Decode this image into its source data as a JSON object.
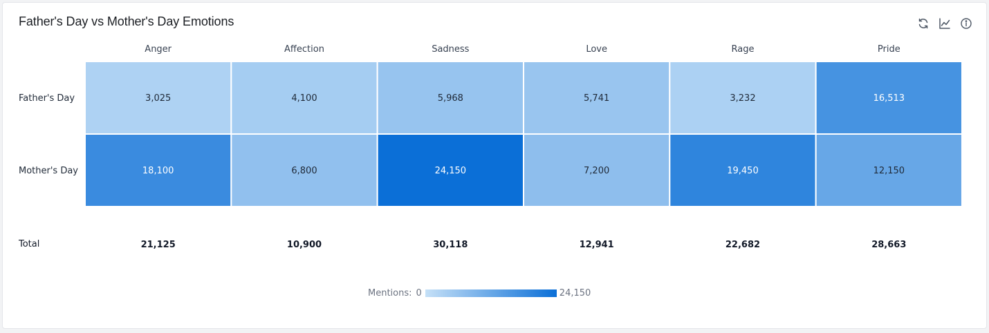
{
  "title": "Father's Day vs Mother's Day Emotions",
  "toolbar": {
    "icons": [
      "refresh-icon",
      "line-chart-icon",
      "info-icon"
    ]
  },
  "chart_data": {
    "type": "heatmap",
    "title": "Father's Day vs Mother's Day Emotions",
    "columns": [
      "Anger",
      "Affection",
      "Sadness",
      "Love",
      "Rage",
      "Pride"
    ],
    "rows": [
      "Father's Day",
      "Mother's Day"
    ],
    "values": [
      [
        3025,
        4100,
        5968,
        5741,
        3232,
        16513
      ],
      [
        18100,
        6800,
        24150,
        7200,
        19450,
        12150
      ]
    ],
    "value_labels": [
      [
        "3,025",
        "4,100",
        "5,968",
        "5,741",
        "3,232",
        "16,513"
      ],
      [
        "18,100",
        "6,800",
        "24,150",
        "7,200",
        "19,450",
        "12,150"
      ]
    ],
    "total_label": "Total",
    "totals": [
      "21,125",
      "10,900",
      "30,118",
      "12,941",
      "22,682",
      "28,663"
    ],
    "color_scale": {
      "min": 0,
      "max": 24150,
      "min_color": "#c5e0f7",
      "max_color": "#0b6fd7"
    },
    "legend": {
      "label": "Mentions:",
      "min_label": "0",
      "max_label": "24,150",
      "placement": "bottom-center"
    }
  }
}
